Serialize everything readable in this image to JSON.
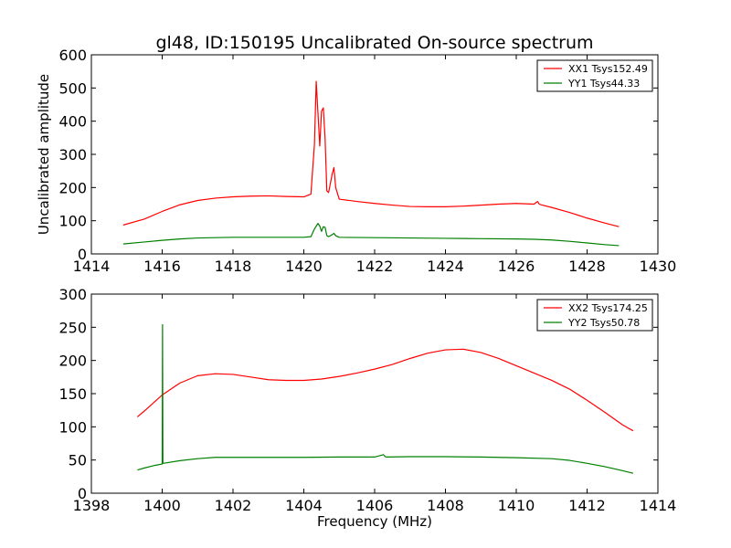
{
  "figure": {
    "title": "gl48, ID:150195 Uncalibrated On-source spectrum"
  },
  "chart_data": [
    {
      "type": "line",
      "title": "gl48, ID:150195 Uncalibrated On-source spectrum",
      "xlabel": "",
      "ylabel": "Uncalibrated amplitude",
      "xlim": [
        1414,
        1430
      ],
      "ylim": [
        0,
        600
      ],
      "xticks": [
        1414,
        1416,
        1418,
        1420,
        1422,
        1424,
        1426,
        1428,
        1430
      ],
      "yticks": [
        0,
        100,
        200,
        300,
        400,
        500,
        600
      ],
      "grid": false,
      "legend_position": "top-right",
      "series": [
        {
          "name": "XX1 Tsys152.49",
          "color": "#ff0000",
          "x": [
            1414.9,
            1415.5,
            1416.0,
            1416.5,
            1417.0,
            1417.5,
            1418.0,
            1418.5,
            1419.0,
            1419.5,
            1420.0,
            1420.2,
            1420.3,
            1420.35,
            1420.45,
            1420.5,
            1420.55,
            1420.6,
            1420.65,
            1420.7,
            1420.8,
            1420.85,
            1420.9,
            1421.0,
            1421.5,
            1422.0,
            1422.5,
            1423.0,
            1423.5,
            1424.0,
            1424.5,
            1425.0,
            1425.5,
            1426.0,
            1426.5,
            1426.6,
            1426.65,
            1426.7,
            1427.0,
            1427.5,
            1428.0,
            1428.5,
            1428.9
          ],
          "values": [
            87,
            105,
            128,
            148,
            161,
            168,
            172,
            174,
            175,
            173,
            172,
            180,
            330,
            520,
            325,
            430,
            440,
            350,
            190,
            185,
            240,
            260,
            200,
            165,
            158,
            152,
            147,
            143,
            142,
            142,
            144,
            147,
            150,
            152,
            150,
            158,
            150,
            148,
            140,
            125,
            108,
            93,
            82
          ]
        },
        {
          "name": "YY1 Tsys44.33",
          "color": "#008000",
          "x": [
            1414.9,
            1415.5,
            1416.0,
            1416.5,
            1417.0,
            1417.5,
            1418.0,
            1418.5,
            1419.0,
            1419.5,
            1420.0,
            1420.2,
            1420.3,
            1420.4,
            1420.45,
            1420.5,
            1420.55,
            1420.6,
            1420.65,
            1420.7,
            1420.8,
            1420.85,
            1420.9,
            1421.0,
            1422.0,
            1423.0,
            1424.0,
            1425.0,
            1426.0,
            1426.5,
            1427.0,
            1427.5,
            1428.0,
            1428.5,
            1428.9
          ],
          "values": [
            30,
            36,
            41,
            45,
            48,
            49,
            50,
            50,
            50,
            50,
            50,
            52,
            75,
            92,
            84,
            68,
            82,
            80,
            55,
            52,
            58,
            62,
            55,
            50,
            49,
            48,
            47,
            46,
            45,
            44,
            42,
            38,
            33,
            28,
            25
          ]
        }
      ]
    },
    {
      "type": "line",
      "title": "",
      "xlabel": "Frequency (MHz)",
      "ylabel": "",
      "xlim": [
        1398,
        1414
      ],
      "ylim": [
        0,
        300
      ],
      "xticks": [
        1398,
        1400,
        1402,
        1404,
        1406,
        1408,
        1410,
        1412,
        1414
      ],
      "yticks": [
        0,
        50,
        100,
        150,
        200,
        250,
        300
      ],
      "grid": false,
      "legend_position": "top-right",
      "series": [
        {
          "name": "XX2 Tsys174.25",
          "color": "#ff0000",
          "x": [
            1399.3,
            1399.5,
            1400.0,
            1400.5,
            1401.0,
            1401.5,
            1402.0,
            1402.5,
            1403.0,
            1403.5,
            1404.0,
            1404.5,
            1405.0,
            1405.5,
            1406.0,
            1406.5,
            1407.0,
            1407.5,
            1408.0,
            1408.5,
            1409.0,
            1409.5,
            1410.0,
            1410.5,
            1411.0,
            1411.5,
            1412.0,
            1412.5,
            1413.0,
            1413.3
          ],
          "values": [
            115,
            124,
            148,
            166,
            177,
            180,
            179,
            175,
            171,
            170,
            170,
            172,
            176,
            181,
            187,
            194,
            203,
            211,
            216,
            217,
            212,
            203,
            192,
            181,
            170,
            157,
            140,
            122,
            103,
            94
          ]
        },
        {
          "name": "YY2 Tsys50.78",
          "color": "#008000",
          "x": [
            1399.3,
            1399.5,
            1399.8,
            1400.0,
            1400.01,
            1400.02,
            1400.03,
            1400.5,
            1401.0,
            1401.5,
            1402.0,
            1403.0,
            1404.0,
            1405.0,
            1406.0,
            1406.25,
            1406.3,
            1406.35,
            1407.0,
            1408.0,
            1409.0,
            1410.0,
            1411.0,
            1411.5,
            1412.0,
            1412.5,
            1413.0,
            1413.3
          ],
          "values": [
            35,
            38,
            42,
            44,
            254,
            46,
            45,
            49,
            52,
            54,
            54,
            54,
            54,
            54.5,
            54.5,
            58,
            55,
            54.5,
            55,
            55,
            54.5,
            53.5,
            52,
            49.5,
            45,
            40,
            34,
            30
          ]
        }
      ]
    }
  ]
}
